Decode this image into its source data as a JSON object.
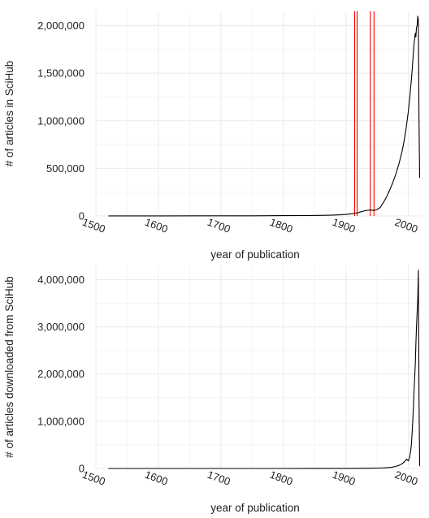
{
  "colors": {
    "grid_major": "#ebebeb",
    "grid_minor": "#f5f5f5",
    "line": "#000000",
    "ref_lines": "#ff0000"
  },
  "chart_data": [
    {
      "type": "line",
      "xlabel": "year of publication",
      "ylabel": "# of articles in SciHub",
      "xlim": [
        1500,
        2020
      ],
      "ylim": [
        0,
        2150000
      ],
      "xticks": [
        1500,
        1600,
        1700,
        1800,
        1900,
        2000
      ],
      "xtick_labels": [
        "1500",
        "1600",
        "1700",
        "1800",
        "1900",
        "2000"
      ],
      "yticks": [
        0,
        500000,
        1000000,
        1500000,
        2000000
      ],
      "ytick_labels": [
        "0",
        "500,000",
        "1,000,000",
        "1,500,000",
        "2,000,000"
      ],
      "grid": true,
      "vertical_lines": [
        1914,
        1918,
        1939,
        1945
      ],
      "series": [
        {
          "x": [
            1520,
            1600,
            1700,
            1750,
            1800,
            1840,
            1860,
            1880,
            1890,
            1900,
            1910,
            1915,
            1920,
            1925,
            1930,
            1935,
            1940,
            1945,
            1950,
            1955,
            1960,
            1965,
            1970,
            1975,
            1980,
            1985,
            1990,
            1993,
            1996,
            2000,
            2003,
            2005,
            2007,
            2009,
            2011,
            2012,
            2013,
            2014,
            2015,
            2016,
            2017,
            2018
          ],
          "y": [
            1000,
            1000,
            1500,
            2000,
            3000,
            4000,
            6000,
            9000,
            12000,
            16000,
            24000,
            30000,
            35000,
            45000,
            55000,
            60000,
            62000,
            58000,
            68000,
            90000,
            140000,
            200000,
            270000,
            350000,
            440000,
            550000,
            680000,
            780000,
            900000,
            1100000,
            1300000,
            1450000,
            1620000,
            1800000,
            1920000,
            1880000,
            1980000,
            2000000,
            2100000,
            2060000,
            1000000,
            400000
          ]
        }
      ]
    },
    {
      "type": "line",
      "xlabel": "year of publication",
      "ylabel": "# of articles downloaded from SciHub",
      "xlim": [
        1500,
        2020
      ],
      "ylim": [
        0,
        4300000
      ],
      "xticks": [
        1500,
        1600,
        1700,
        1800,
        1900,
        2000
      ],
      "xtick_labels": [
        "1500",
        "1600",
        "1700",
        "1800",
        "1900",
        "2000"
      ],
      "yticks": [
        0,
        1000000,
        2000000,
        3000000,
        4000000
      ],
      "ytick_labels": [
        "0",
        "1,000,000",
        "2,000,000",
        "3,000,000",
        "4,000,000"
      ],
      "grid": true,
      "series": [
        {
          "x": [
            1520,
            1600,
            1700,
            1800,
            1850,
            1900,
            1920,
            1940,
            1950,
            1960,
            1970,
            1975,
            1980,
            1985,
            1990,
            1995,
            1997,
            2000,
            2002,
            2004,
            2005,
            2006,
            2007,
            2008,
            2009,
            2010,
            2011,
            2012,
            2013,
            2014,
            2015,
            2016,
            2017,
            2018
          ],
          "y": [
            200,
            200,
            300,
            500,
            1000,
            2000,
            3000,
            5000,
            8000,
            12000,
            20000,
            30000,
            45000,
            65000,
            100000,
            160000,
            200000,
            160000,
            240000,
            400000,
            550000,
            750000,
            1000000,
            1300000,
            1600000,
            1900000,
            2200000,
            2600000,
            3000000,
            3300000,
            3600000,
            4200000,
            1500000,
            50000
          ]
        }
      ]
    }
  ]
}
